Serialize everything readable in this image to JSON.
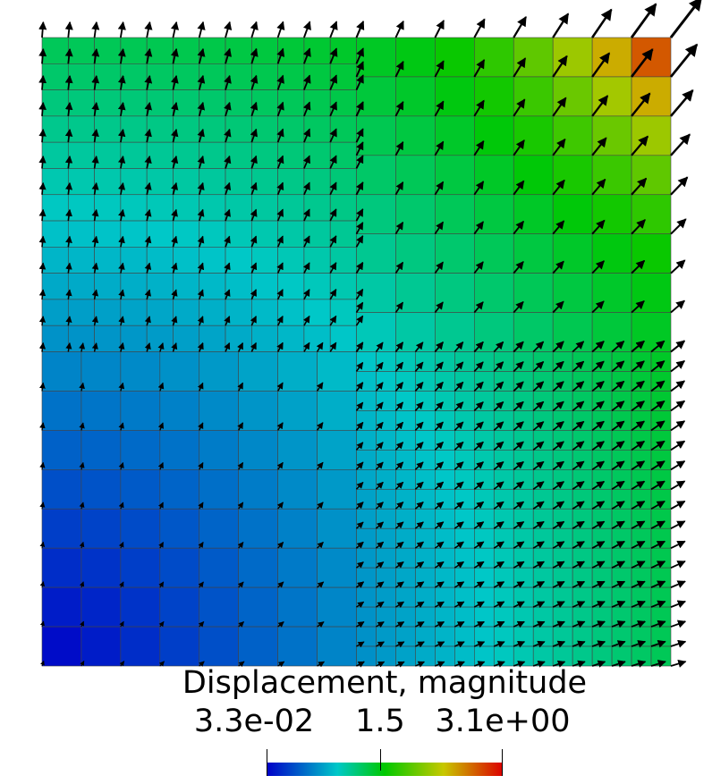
{
  "colorbar": {
    "title": "Displacement, magnitude",
    "tick_labels": [
      "3.3e-02",
      "1.5",
      "3.1e+00"
    ]
  }
}
